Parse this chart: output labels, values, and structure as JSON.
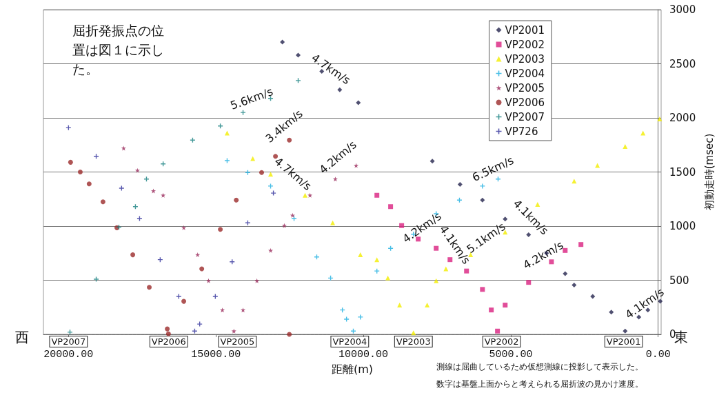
{
  "chart_data": {
    "type": "scatter",
    "xlabel": "距離(m)",
    "ylabel": "初動走時(msec)",
    "xlim": [
      20850,
      -100
    ],
    "xticks": [
      {
        "value": 20000,
        "label": "20000.00"
      },
      {
        "value": 15000,
        "label": "15000.00"
      },
      {
        "value": 10000,
        "label": "10000.00"
      },
      {
        "value": 5000,
        "label": "5000.00"
      },
      {
        "value": 0,
        "label": "0.00"
      }
    ],
    "ylim": [
      0,
      3000
    ],
    "yticks": [
      0,
      500,
      1000,
      1500,
      2000,
      2500,
      3000
    ],
    "grid": "y",
    "legend": "top right",
    "series": [
      {
        "name": "VP2001",
        "color": "#24244e",
        "marker": "diamond",
        "x": [
          12745,
          12210,
          11410,
          10800,
          10170,
          7660,
          6720,
          5960,
          5190,
          4395,
          3785,
          3155,
          2850,
          2220,
          1590,
          1120,
          655,
          350,
          -70
        ],
        "values": [
          2700,
          2580,
          2430,
          2260,
          2140,
          1600,
          1385,
          1240,
          1065,
          920,
          750,
          560,
          455,
          350,
          205,
          30,
          160,
          225,
          305
        ]
      },
      {
        "name": "VP2002",
        "color": "#d9217f",
        "marker": "square",
        "x": [
          9540,
          9075,
          8700,
          8140,
          7530,
          7060,
          6500,
          5960,
          5660,
          5450,
          5190,
          4395,
          3620,
          3155,
          2620
        ],
        "values": [
          1285,
          1180,
          1005,
          880,
          795,
          690,
          585,
          415,
          225,
          30,
          270,
          480,
          670,
          775,
          830
        ]
      },
      {
        "name": "VP2003",
        "color": "#f2ee00",
        "marker": "triangle",
        "x": [
          14620,
          13750,
          13145,
          11975,
          11040,
          10100,
          9540,
          9170,
          8770,
          8300,
          7835,
          7530,
          7200,
          6360,
          5190,
          4090,
          2850,
          2060,
          1120,
          515,
          -50
        ],
        "values": [
          1860,
          1625,
          1480,
          1285,
          1030,
          735,
          690,
          520,
          270,
          15,
          270,
          495,
          605,
          735,
          945,
          1200,
          1415,
          1560,
          1735,
          1860,
          1990
        ]
      },
      {
        "name": "VP2004",
        "color": "#1aaee0",
        "marker": "cross",
        "x": [
          14620,
          13920,
          13145,
          12350,
          11580,
          11110,
          10710,
          10570,
          10340,
          10100,
          9540,
          9075,
          8300,
          7530,
          6740,
          5960,
          5430
        ],
        "values": [
          1605,
          1495,
          1370,
          1070,
          715,
          520,
          225,
          140,
          30,
          160,
          585,
          795,
          925,
          1115,
          1240,
          1370,
          1435
        ]
      },
      {
        "name": "VP2005",
        "color": "#9b2d5e",
        "marker": "star",
        "x": [
          18130,
          17660,
          17120,
          16790,
          16090,
          15620,
          15250,
          14780,
          14390,
          14080,
          13610,
          13145,
          12680,
          12400,
          11810,
          10950,
          10245
        ],
        "values": [
          1720,
          1515,
          1325,
          1285,
          985,
          735,
          495,
          225,
          30,
          225,
          495,
          775,
          1005,
          1100,
          1285,
          1435,
          1560
        ]
      },
      {
        "name": "VP2006",
        "color": "#9b2a2a",
        "marker": "circle",
        "x": [
          19930,
          19600,
          19300,
          18830,
          18360,
          17820,
          17260,
          16650,
          16610,
          16090,
          15480,
          14850,
          14310,
          13450,
          12980,
          12510,
          12510
        ],
        "values": [
          1590,
          1500,
          1390,
          1225,
          985,
          735,
          435,
          50,
          5,
          305,
          605,
          970,
          1240,
          1495,
          1645,
          1795,
          0
        ]
      },
      {
        "name": "VP2007",
        "color": "#157f80",
        "marker": "cross",
        "x": [
          19950,
          19060,
          18290,
          17730,
          17355,
          16790,
          15790,
          14850,
          14080,
          13145,
          12210
        ],
        "values": [
          20,
          510,
          990,
          1180,
          1435,
          1575,
          1795,
          1925,
          2050,
          2180,
          2345
        ]
      },
      {
        "name": "VP726",
        "color": "#2e2e9a",
        "marker": "cross",
        "x": [
          20000,
          19060,
          18200,
          17590,
          16890,
          16260,
          15720,
          15550,
          15020,
          14450,
          13920,
          13050
        ],
        "values": [
          1910,
          1645,
          1350,
          1070,
          690,
          350,
          30,
          95,
          350,
          670,
          1030,
          1305
        ]
      }
    ],
    "annotations": [
      "屈折発振点の位置は図１に示した。",
      {
        "text": "VP2007",
        "x": 20000,
        "y": 0
      },
      {
        "text": "VP2006",
        "x": 16600,
        "y": 0
      },
      {
        "text": "VP2005",
        "x": 14270,
        "y": 0
      },
      {
        "text": "VP2004",
        "x": 10460,
        "y": 0
      },
      {
        "text": "VP2003",
        "x": 8300,
        "y": 0
      },
      {
        "text": "VP2002",
        "x": 5310,
        "y": 0
      },
      {
        "text": "VP2001",
        "x": 1170,
        "y": 0
      },
      "5.6km/s",
      "4.7km/s",
      "3.4km/s",
      "4.7km/s",
      "4.2km/s",
      "4.2km/s",
      "4.1km/s",
      "5.1km/s",
      "6.5km/s",
      "4.1km/s",
      "4.2km/s",
      "4.1km/s",
      "西",
      "東",
      "測線は屈曲しているため仮想測線に投影して表示した。",
      "数字は基盤上面からと考えられる屈折波の見かけ速度。"
    ]
  }
}
